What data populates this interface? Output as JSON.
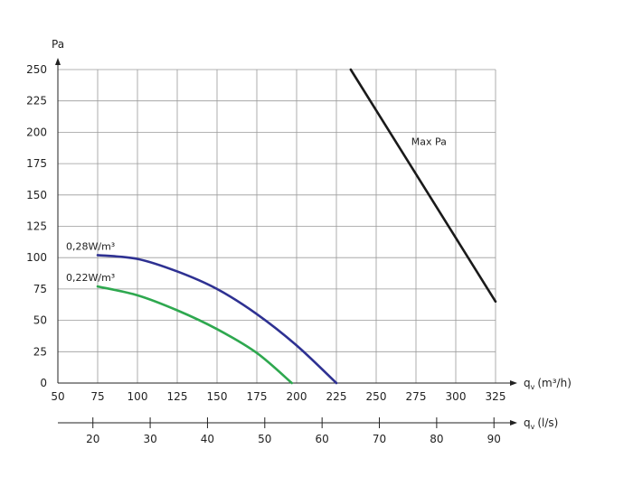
{
  "chart_data": {
    "type": "line",
    "ylabel": "Pa",
    "xlabel_main_prefix": "q",
    "xlabel_main_sub": "v",
    "xlabel_main_unit": "(m³/h)",
    "xlabel_secondary_prefix": "q",
    "xlabel_secondary_sub": "v",
    "xlabel_secondary_unit": "(l/s)",
    "xlim": [
      50,
      325
    ],
    "ylim": [
      0,
      250
    ],
    "x_ticks": [
      50,
      75,
      100,
      125,
      150,
      175,
      200,
      225,
      250,
      275,
      300,
      325
    ],
    "y_ticks": [
      0,
      25,
      50,
      75,
      100,
      125,
      150,
      175,
      200,
      225,
      250
    ],
    "secondary_x_ticks": [
      20,
      30,
      40,
      50,
      60,
      70,
      80,
      90
    ],
    "grid": true,
    "series": [
      {
        "name": "0,28W/m³",
        "color": "#2e3192",
        "x": [
          75,
          100,
          125,
          150,
          175,
          200,
          225
        ],
        "y": [
          102,
          99,
          89,
          75,
          55,
          30,
          0
        ]
      },
      {
        "name": "0,22W/m³",
        "color": "#2ea84f",
        "x": [
          75,
          100,
          125,
          150,
          175,
          197
        ],
        "y": [
          77,
          70,
          58,
          43,
          24,
          0
        ]
      },
      {
        "name": "Max Pa",
        "color": "#1a1a1a",
        "x": [
          234,
          325
        ],
        "y": [
          250,
          65
        ]
      }
    ]
  }
}
